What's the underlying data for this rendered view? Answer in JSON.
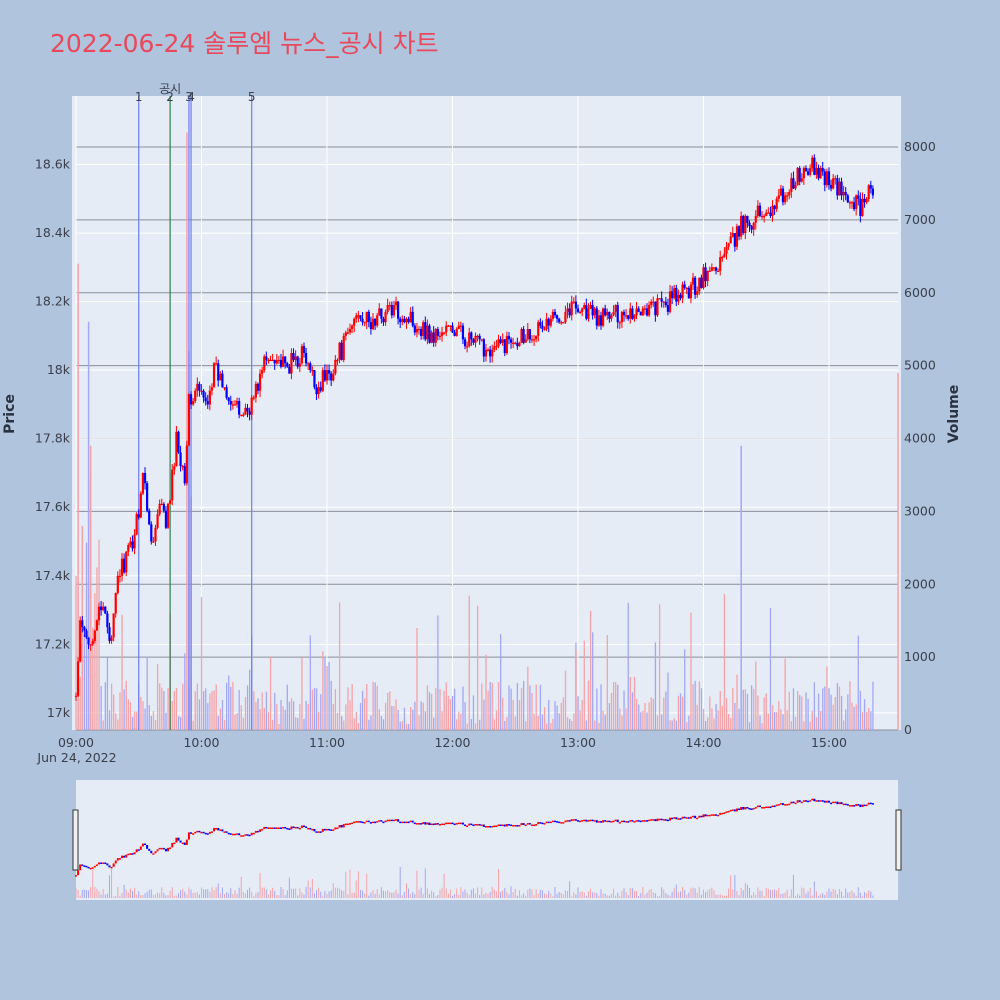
{
  "page": {
    "title": "2022-06-24 솔루엠 뉴스_공시 차트",
    "background": "#b0c4de",
    "plot_background": "#e5ecf6",
    "title_color": "#e8485a"
  },
  "chart_data": {
    "type": "candlestick",
    "title": "2022-06-24 솔루엠 뉴스_공시 차트",
    "y_left_label": "Price",
    "y_right_label": "Volume",
    "x_date_label": "Jun 24, 2022",
    "x_ticks": [
      "09:00",
      "10:00",
      "11:00",
      "12:00",
      "13:00",
      "14:00",
      "15:00"
    ],
    "y_price_ticks": [
      "17k",
      "17.2k",
      "17.4k",
      "17.6k",
      "17.8k",
      "18k",
      "18.2k",
      "18.4k",
      "18.6k"
    ],
    "y_volume_ticks": [
      "0",
      "1000",
      "2000",
      "3000",
      "4000",
      "5000",
      "6000",
      "7000",
      "8000"
    ],
    "price_range": [
      16950,
      18800
    ],
    "volume_range": [
      0,
      8700
    ],
    "x_range_minutes": [
      0,
      393
    ],
    "up_color": "#ff0000",
    "down_color": "#0000ff",
    "markers": [
      {
        "label": "1",
        "minute": 30,
        "color": "#6f7cf5"
      },
      {
        "label": "2",
        "minute": 45,
        "color": "#2e7d4f"
      },
      {
        "label": "3",
        "minute": 54,
        "color": "#6f7cf5"
      },
      {
        "label": "4",
        "minute": 55,
        "color": "#6f7cf5"
      },
      {
        "label": "5",
        "minute": 84,
        "color": "#6f7cf5"
      }
    ],
    "marker_caption": "공시",
    "price_path": [
      [
        0,
        17050
      ],
      [
        2,
        17250
      ],
      [
        6,
        17200
      ],
      [
        10,
        17280
      ],
      [
        14,
        17300
      ],
      [
        17,
        17200
      ],
      [
        20,
        17400
      ],
      [
        24,
        17450
      ],
      [
        27,
        17500
      ],
      [
        30,
        17600
      ],
      [
        32,
        17700
      ],
      [
        35,
        17550
      ],
      [
        37,
        17500
      ],
      [
        40,
        17600
      ],
      [
        43,
        17560
      ],
      [
        45,
        17620
      ],
      [
        48,
        17800
      ],
      [
        52,
        17700
      ],
      [
        54,
        17900
      ],
      [
        58,
        17950
      ],
      [
        62,
        17900
      ],
      [
        66,
        18000
      ],
      [
        72,
        17950
      ],
      [
        78,
        17870
      ],
      [
        84,
        17900
      ],
      [
        90,
        18020
      ],
      [
        95,
        18050
      ],
      [
        100,
        18000
      ],
      [
        108,
        18050
      ],
      [
        115,
        17950
      ],
      [
        122,
        18000
      ],
      [
        130,
        18100
      ],
      [
        135,
        18180
      ],
      [
        140,
        18130
      ],
      [
        150,
        18180
      ],
      [
        160,
        18150
      ],
      [
        170,
        18100
      ],
      [
        180,
        18120
      ],
      [
        190,
        18080
      ],
      [
        200,
        18060
      ],
      [
        210,
        18100
      ],
      [
        222,
        18120
      ],
      [
        232,
        18170
      ],
      [
        240,
        18190
      ],
      [
        250,
        18150
      ],
      [
        262,
        18170
      ],
      [
        272,
        18180
      ],
      [
        280,
        18190
      ],
      [
        290,
        18220
      ],
      [
        300,
        18270
      ],
      [
        310,
        18330
      ],
      [
        318,
        18420
      ],
      [
        325,
        18450
      ],
      [
        335,
        18490
      ],
      [
        345,
        18560
      ],
      [
        352,
        18590
      ],
      [
        360,
        18560
      ],
      [
        368,
        18500
      ],
      [
        375,
        18480
      ],
      [
        380,
        18540
      ],
      [
        381,
        18500
      ]
    ]
  }
}
